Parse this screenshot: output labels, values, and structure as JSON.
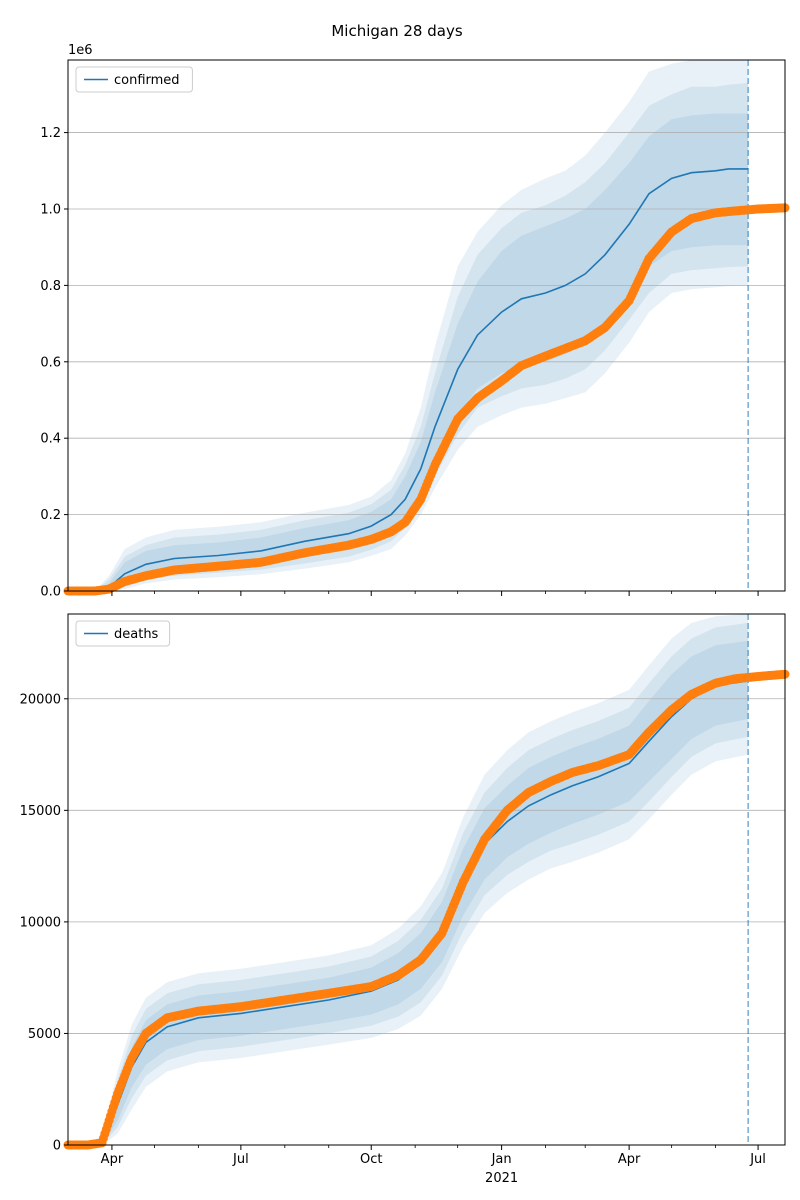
{
  "title": "Michigan 28 days",
  "colors": {
    "model": "#1f77b4",
    "observed": "#ff7f0e",
    "band": "#1f77b4",
    "grid": "#b0b0b0",
    "cutoff": "#1f77b4"
  },
  "x_axis": {
    "range": [
      "2020-03-01",
      "2021-07-20"
    ],
    "major_ticks": [
      {
        "date": "2020-04-01",
        "label": "Apr"
      },
      {
        "date": "2020-07-01",
        "label": "Jul"
      },
      {
        "date": "2020-10-01",
        "label": "Oct"
      },
      {
        "date": "2021-01-01",
        "label": "Jan"
      },
      {
        "date": "2021-04-01",
        "label": "Apr"
      },
      {
        "date": "2021-07-01",
        "label": "Jul"
      }
    ],
    "minor_ticks": [
      "2020-05-01",
      "2020-06-01",
      "2020-08-01",
      "2020-09-01",
      "2020-11-01",
      "2020-12-01",
      "2021-02-01",
      "2021-03-01",
      "2021-05-01",
      "2021-06-01"
    ],
    "year_label": "2021",
    "cutoff_date": "2021-06-24"
  },
  "chart_data": [
    {
      "type": "line",
      "name": "confirmed",
      "legend": "top-left",
      "grid": "horizontal",
      "ylim": [
        0,
        1390000
      ],
      "y_ticks": [
        {
          "v": 0,
          "label": "0.0"
        },
        {
          "v": 200000,
          "label": "0.2"
        },
        {
          "v": 400000,
          "label": "0.4"
        },
        {
          "v": 600000,
          "label": "0.6"
        },
        {
          "v": 800000,
          "label": "0.8"
        },
        {
          "v": 1000000,
          "label": "1.0"
        },
        {
          "v": 1200000,
          "label": "1.2"
        }
      ],
      "offset_label": "1e6",
      "model": {
        "x": [
          "2020-03-01",
          "2020-03-20",
          "2020-03-30",
          "2020-04-10",
          "2020-04-25",
          "2020-05-15",
          "2020-06-15",
          "2020-07-15",
          "2020-08-15",
          "2020-09-15",
          "2020-10-01",
          "2020-10-15",
          "2020-10-25",
          "2020-11-05",
          "2020-11-15",
          "2020-12-01",
          "2020-12-15",
          "2021-01-01",
          "2021-01-15",
          "2021-02-01",
          "2021-02-15",
          "2021-03-01",
          "2021-03-15",
          "2021-04-01",
          "2021-04-15",
          "2021-05-01",
          "2021-05-15",
          "2021-06-01",
          "2021-06-10",
          "2021-06-24"
        ],
        "y": [
          0,
          0,
          10000,
          45000,
          70000,
          85000,
          93000,
          105000,
          130000,
          150000,
          170000,
          200000,
          240000,
          320000,
          430000,
          580000,
          670000,
          730000,
          765000,
          780000,
          800000,
          830000,
          880000,
          960000,
          1040000,
          1080000,
          1095000,
          1100000,
          1105000,
          1105000
        ],
        "bands": [
          {
            "lo": [
              0,
              0,
              0,
              20000,
              42000,
              55000,
              62000,
              70000,
              90000,
              110000,
              128000,
              155000,
              190000,
              260000,
              340000,
              460000,
              530000,
              570000,
              590000,
              600000,
              620000,
              650000,
              700000,
              780000,
              850000,
              890000,
              900000,
              905000,
              905000,
              905000
            ],
            "hi": [
              0,
              0,
              20000,
              75000,
              105000,
              120000,
              127000,
              140000,
              165000,
              185000,
              207000,
              240000,
              300000,
              390000,
              520000,
              700000,
              810000,
              890000,
              930000,
              955000,
              975000,
              1000000,
              1050000,
              1120000,
              1190000,
              1235000,
              1245000,
              1250000,
              1250000,
              1250000
            ]
          },
          {
            "lo": [
              0,
              0,
              0,
              10000,
              30000,
              40000,
              48000,
              56000,
              72000,
              90000,
              108000,
              130000,
              165000,
              230000,
              300000,
              410000,
              480000,
              510000,
              530000,
              540000,
              556000,
              580000,
              630000,
              710000,
              780000,
              830000,
              840000,
              845000,
              848000,
              850000
            ],
            "hi": [
              0,
              0,
              30000,
              90000,
              120000,
              140000,
              148000,
              160000,
              185000,
              205000,
              227000,
              265000,
              330000,
              430000,
              570000,
              770000,
              880000,
              950000,
              990000,
              1010000,
              1035000,
              1070000,
              1120000,
              1200000,
              1270000,
              1300000,
              1320000,
              1320000,
              1325000,
              1330000
            ]
          },
          {
            "lo": [
              0,
              0,
              0,
              5000,
              20000,
              30000,
              36000,
              44000,
              58000,
              75000,
              92000,
              110000,
              145000,
              200000,
              270000,
              370000,
              430000,
              460000,
              480000,
              490000,
              505000,
              520000,
              570000,
              650000,
              730000,
              780000,
              790000,
              795000,
              798000,
              800000
            ],
            "hi": [
              0,
              0,
              40000,
              110000,
              140000,
              160000,
              168000,
              180000,
              205000,
              225000,
              247000,
              290000,
              360000,
              480000,
              640000,
              850000,
              940000,
              1010000,
              1050000,
              1080000,
              1100000,
              1140000,
              1200000,
              1280000,
              1360000,
              1380000,
              1390000,
              1390000,
              1390000,
              1390000
            ]
          }
        ]
      },
      "observed": {
        "x": [
          "2020-03-01",
          "2020-03-20",
          "2020-03-30",
          "2020-04-10",
          "2020-04-25",
          "2020-05-15",
          "2020-06-15",
          "2020-07-15",
          "2020-08-15",
          "2020-09-15",
          "2020-10-01",
          "2020-10-15",
          "2020-10-25",
          "2020-11-05",
          "2020-11-15",
          "2020-12-01",
          "2020-12-15",
          "2021-01-01",
          "2021-01-15",
          "2021-02-01",
          "2021-02-15",
          "2021-03-01",
          "2021-03-15",
          "2021-04-01",
          "2021-04-15",
          "2021-05-01",
          "2021-05-15",
          "2021-06-01",
          "2021-06-15",
          "2021-07-01",
          "2021-07-20"
        ],
        "y": [
          0,
          0,
          5000,
          25000,
          40000,
          55000,
          65000,
          75000,
          100000,
          120000,
          135000,
          155000,
          180000,
          240000,
          330000,
          450000,
          505000,
          550000,
          590000,
          615000,
          635000,
          655000,
          690000,
          760000,
          870000,
          940000,
          975000,
          990000,
          995000,
          1000000,
          1003000
        ]
      }
    },
    {
      "type": "line",
      "name": "deaths",
      "legend": "top-left",
      "grid": "horizontal",
      "ylim": [
        0,
        23800
      ],
      "y_ticks": [
        {
          "v": 0,
          "label": "0"
        },
        {
          "v": 5000,
          "label": "5000"
        },
        {
          "v": 10000,
          "label": "10000"
        },
        {
          "v": 15000,
          "label": "15000"
        },
        {
          "v": 20000,
          "label": "20000"
        }
      ],
      "offset_label": "",
      "model": {
        "x": [
          "2020-03-01",
          "2020-03-15",
          "2020-03-25",
          "2020-04-05",
          "2020-04-15",
          "2020-04-25",
          "2020-05-10",
          "2020-06-01",
          "2020-07-01",
          "2020-08-01",
          "2020-09-01",
          "2020-10-01",
          "2020-10-20",
          "2020-11-05",
          "2020-11-20",
          "2020-12-05",
          "2020-12-20",
          "2021-01-05",
          "2021-01-20",
          "2021-02-05",
          "2021-02-20",
          "2021-03-10",
          "2021-04-01",
          "2021-04-15",
          "2021-05-01",
          "2021-05-15",
          "2021-06-01",
          "2021-06-24"
        ],
        "y": [
          0,
          0,
          100,
          1800,
          3500,
          4600,
          5300,
          5700,
          5900,
          6200,
          6500,
          6900,
          7400,
          8200,
          9500,
          11800,
          13500,
          14500,
          15200,
          15700,
          16100,
          16500,
          17100,
          18100,
          19200,
          20000,
          20600,
          20800
        ],
        "bands": [
          {
            "lo": [
              0,
              0,
              0,
              1100,
              2600,
              3600,
              4300,
              4700,
              4900,
              5200,
              5500,
              5850,
              6300,
              7000,
              8200,
              10300,
              11900,
              12900,
              13500,
              14000,
              14400,
              14800,
              15400,
              16300,
              17300,
              18200,
              18800,
              19100
            ],
            "hi": [
              0,
              0,
              200,
              2500,
              4400,
              5600,
              6300,
              6700,
              6900,
              7200,
              7500,
              7950,
              8600,
              9500,
              10900,
              13300,
              15100,
              16100,
              16900,
              17400,
              17800,
              18200,
              18800,
              19900,
              21100,
              21900,
              22400,
              22600
            ]
          },
          {
            "lo": [
              0,
              0,
              0,
              800,
              2100,
              3100,
              3800,
              4200,
              4400,
              4700,
              5000,
              5350,
              5750,
              6400,
              7600,
              9600,
              11200,
              12100,
              12700,
              13200,
              13500,
              13900,
              14500,
              15400,
              16500,
              17400,
              18000,
              18300
            ],
            "hi": [
              0,
              0,
              300,
              2900,
              4900,
              6100,
              6800,
              7200,
              7400,
              7700,
              8000,
              8450,
              9150,
              10100,
              11500,
              14000,
              15800,
              16900,
              17700,
              18200,
              18600,
              19000,
              19600,
              20700,
              21900,
              22700,
              23200,
              23400
            ]
          },
          {
            "lo": [
              0,
              0,
              0,
              500,
              1600,
              2600,
              3300,
              3700,
              3900,
              4200,
              4500,
              4800,
              5200,
              5800,
              7000,
              8900,
              10400,
              11300,
              11900,
              12400,
              12700,
              13100,
              13700,
              14600,
              15700,
              16600,
              17200,
              17500
            ],
            "hi": [
              0,
              0,
              400,
              3300,
              5400,
              6600,
              7300,
              7700,
              7900,
              8200,
              8500,
              8950,
              9700,
              10700,
              12200,
              14700,
              16600,
              17700,
              18500,
              19000,
              19400,
              19800,
              20400,
              21500,
              22700,
              23400,
              23700,
              23800
            ]
          }
        ]
      },
      "observed": {
        "x": [
          "2020-03-01",
          "2020-03-15",
          "2020-03-25",
          "2020-04-05",
          "2020-04-15",
          "2020-04-25",
          "2020-05-10",
          "2020-06-01",
          "2020-07-01",
          "2020-08-01",
          "2020-09-01",
          "2020-10-01",
          "2020-10-20",
          "2020-11-05",
          "2020-11-20",
          "2020-12-05",
          "2020-12-20",
          "2021-01-05",
          "2021-01-20",
          "2021-02-05",
          "2021-02-20",
          "2021-03-10",
          "2021-04-01",
          "2021-04-15",
          "2021-05-01",
          "2021-05-15",
          "2021-06-01",
          "2021-06-15",
          "2021-07-01",
          "2021-07-20"
        ],
        "y": [
          0,
          0,
          100,
          2300,
          3900,
          5000,
          5700,
          6000,
          6200,
          6500,
          6800,
          7100,
          7600,
          8300,
          9500,
          11800,
          13700,
          15000,
          15800,
          16300,
          16700,
          17000,
          17500,
          18500,
          19500,
          20200,
          20700,
          20900,
          21000,
          21100
        ]
      }
    }
  ]
}
